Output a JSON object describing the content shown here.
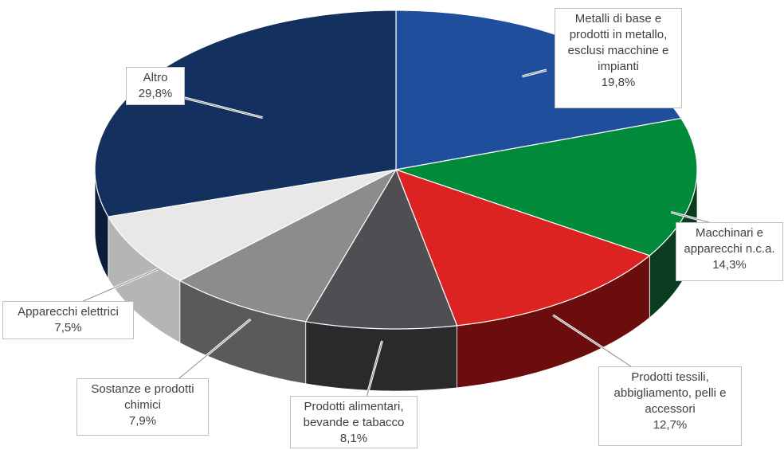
{
  "chart_data": {
    "type": "pie",
    "variant": "3d-tilted",
    "start": "12 o'clock, clockwise",
    "slices": [
      {
        "label": "Metalli di base e prodotti in metallo, esclusi macchine e impianti",
        "display": "Metalli di base e\nprodotti in metallo,\nesclusi macchine e\nimpianti",
        "value": 19.8,
        "value_label": "19,8%",
        "color": "#1F4E9C",
        "side_color": "#14356b"
      },
      {
        "label": "Macchinari e apparecchi n.c.a.",
        "display": "Macchinari e\napparecchi n.c.a.",
        "value": 14.3,
        "value_label": "14,3%",
        "color": "#008A3A",
        "side_color": "#0a3d1f"
      },
      {
        "label": "Prodotti tessili, abbigliamento, pelli e accessori",
        "display": "Prodotti tessili,\nabbigliamento, pelli e\naccessori",
        "value": 12.7,
        "value_label": "12,7%",
        "color": "#DD2222",
        "side_color": "#6b0d0d"
      },
      {
        "label": "Prodotti alimentari, bevande e tabacco",
        "display": "Prodotti alimentari,\nbevande e tabacco",
        "value": 8.1,
        "value_label": "8,1%",
        "color": "#4F4E53",
        "side_color": "#2a2a2d"
      },
      {
        "label": "Sostanze e prodotti chimici",
        "display": "Sostanze e prodotti\nchimici",
        "value": 7.9,
        "value_label": "7,9%",
        "color": "#8C8C8C",
        "side_color": "#5a5a5a"
      },
      {
        "label": "Apparecchi elettrici",
        "display": "Apparecchi elettrici",
        "value": 7.5,
        "value_label": "7,5%",
        "color": "#E8E8E8",
        "side_color": "#b5b5b5"
      },
      {
        "label": "Altro",
        "display": "Altro",
        "value": 29.8,
        "value_label": "29,8%",
        "color": "#13305F",
        "side_color": "#0b1d3a"
      }
    ]
  }
}
